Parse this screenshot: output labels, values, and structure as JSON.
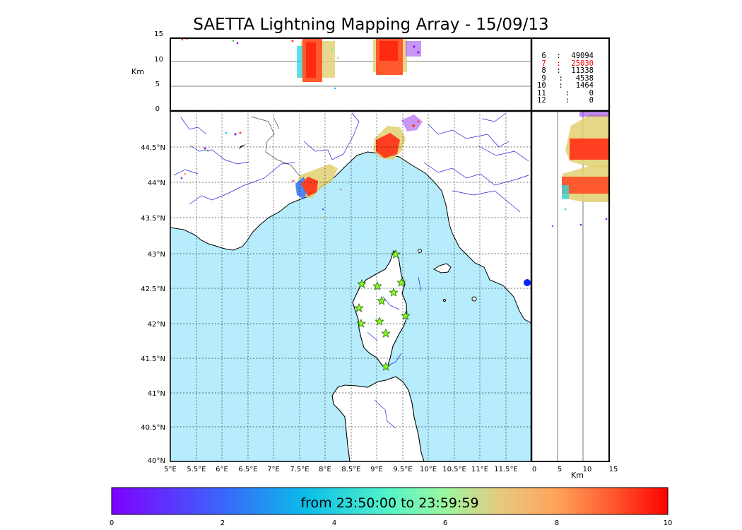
{
  "title": "SAETTA Lightning Mapping Array - 15/09/13",
  "colors": {
    "sea": "#b6ecfb",
    "land": "#ffffff",
    "rivers": "#2222dd",
    "station": "#88ff22",
    "highlight": "#ff0000"
  },
  "altitude_panel": {
    "y_label": "Km",
    "y_ticks": [
      "15",
      "10",
      "5",
      "0"
    ]
  },
  "side_panel": {
    "x_label": "Km",
    "x_ticks": [
      "0",
      "5",
      "10",
      "15"
    ]
  },
  "map": {
    "lon_ticks": [
      "5°E",
      "5.5°E",
      "6°E",
      "6.5°E",
      "7°E",
      "7.5°E",
      "8°E",
      "8.5°E",
      "9°E",
      "9.5°E",
      "10°E",
      "10.5°E",
      "11°E",
      "11.5°E"
    ],
    "lat_ticks": [
      "44.5°N",
      "44°N",
      "43.5°N",
      "43°N",
      "42.5°N",
      "42°N",
      "41.5°N",
      "41°N",
      "40.5°N",
      "40°N"
    ]
  },
  "station_count_by_altitude": [
    {
      "level": "6",
      "sep": ":",
      "count": "49094",
      "highlight": false
    },
    {
      "level": "7",
      "sep": ":",
      "count": "25030",
      "highlight": true
    },
    {
      "level": "8",
      "sep": ":",
      "count": "11338",
      "highlight": false
    },
    {
      "level": "9",
      "sep": ":",
      "count": "4538",
      "highlight": false
    },
    {
      "level": "10",
      "sep": ":",
      "count": "1464",
      "highlight": false
    },
    {
      "level": "11",
      "sep": ":",
      "count": "0",
      "highlight": false
    },
    {
      "level": "12",
      "sep": ":",
      "count": "0",
      "highlight": false
    }
  ],
  "colorbar": {
    "label": "from 23:50:00 to 23:59:59",
    "ticks": [
      "0",
      "2",
      "4",
      "6",
      "8",
      "10"
    ]
  }
}
